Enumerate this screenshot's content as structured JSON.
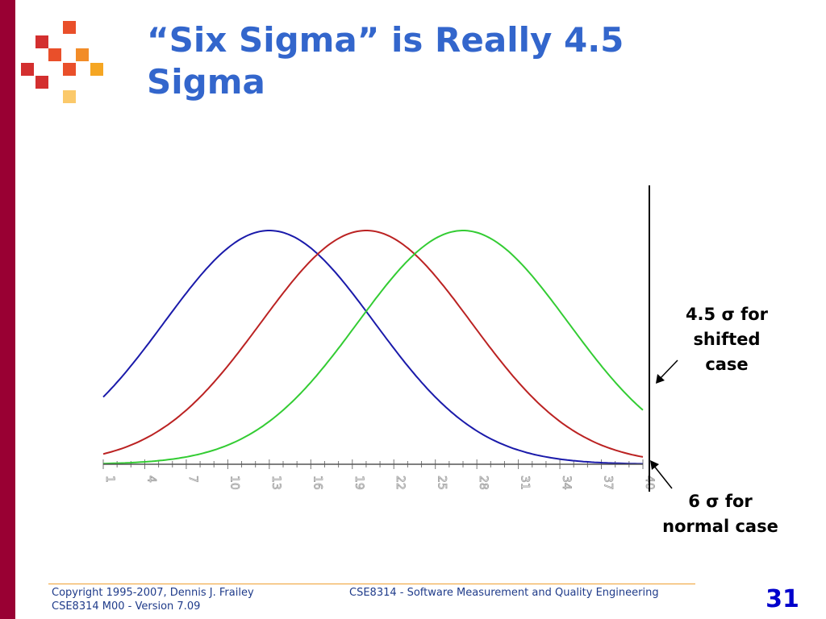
{
  "slide": {
    "title_line1": "“Six Sigma” is Really 4.5",
    "title_line2": "Sigma",
    "page_number": "31"
  },
  "annotations": {
    "shifted": {
      "line1": "4.5 σ for",
      "line2": "shifted",
      "line3": "case"
    },
    "normal": {
      "line1": "6 σ for",
      "line2": "normal case"
    }
  },
  "footer": {
    "copyright": "Copyright 1995-2007, Dennis J. Frailey",
    "version": "CSE8314 M00 - Version 7.09",
    "course": "CSE8314 - Software Measurement and Quality Engineering"
  },
  "colors": {
    "accent_bar": "#990033",
    "title": "#3366cc",
    "curve_blue": "#1a1aaa",
    "curve_red": "#bb2222",
    "curve_green": "#33cc33",
    "footer_rule": "#f0a030",
    "page_number": "#0000cc"
  },
  "chart_data": {
    "type": "line",
    "x_range": [
      1,
      40
    ],
    "x_tick_labels": [
      "1",
      "4",
      "7",
      "10",
      "13",
      "16",
      "19",
      "22",
      "25",
      "28",
      "31",
      "34",
      "37",
      "40"
    ],
    "series": [
      {
        "color": "blue",
        "mean": 13,
        "sd": 7.6
      },
      {
        "color": "red",
        "mean": 20,
        "sd": 7.6
      },
      {
        "color": "green",
        "mean": 27,
        "sd": 7.6
      }
    ],
    "limit_line_x": 40.5
  }
}
